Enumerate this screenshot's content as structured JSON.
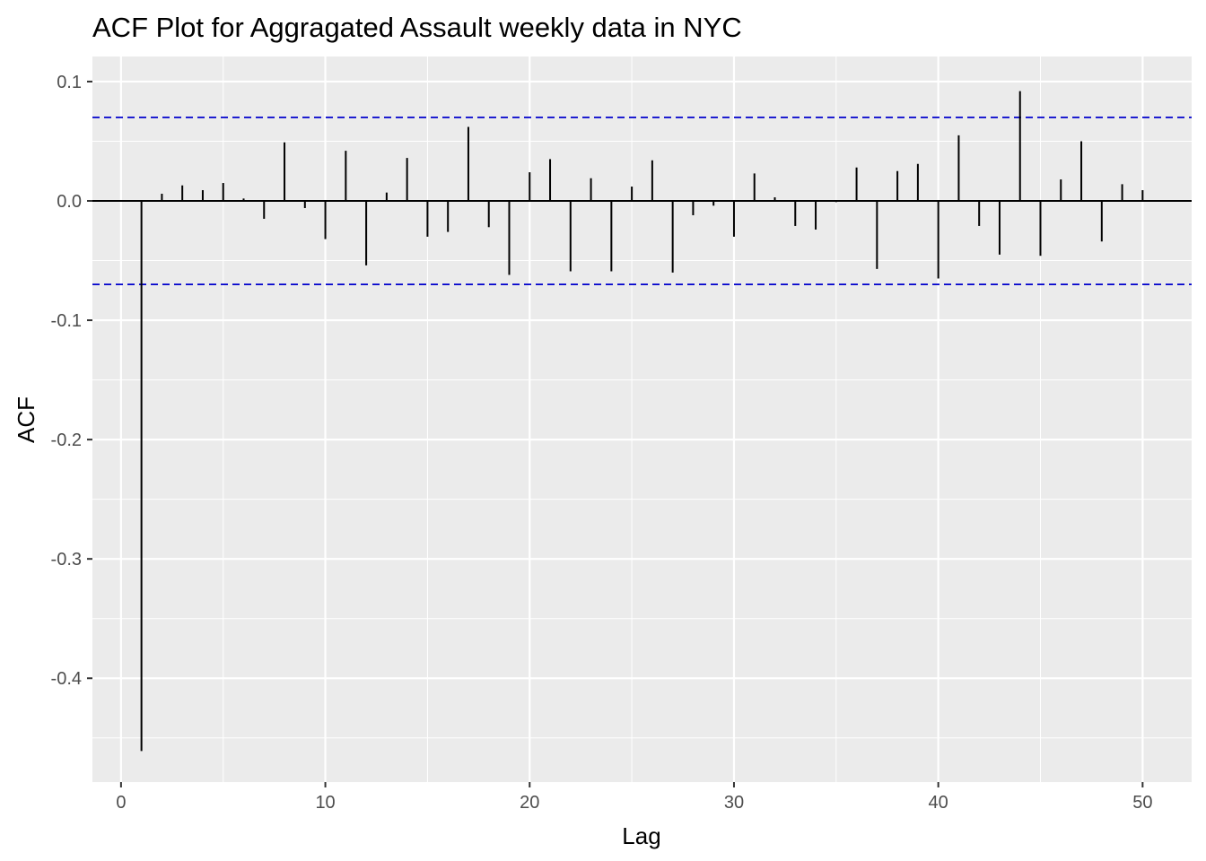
{
  "chart_data": {
    "type": "bar",
    "title": "ACF Plot for Aggragated Assault weekly data in NYC",
    "xlabel": "Lag",
    "ylabel": "ACF",
    "xlim": [
      -1.4,
      52.4
    ],
    "ylim": [
      -0.487,
      0.121
    ],
    "x_ticks": [
      0,
      10,
      20,
      30,
      40,
      50
    ],
    "x_tick_labels": [
      "0",
      "10",
      "20",
      "30",
      "40",
      "50"
    ],
    "y_ticks": [
      0.1,
      0.0,
      -0.1,
      -0.2,
      -0.3,
      -0.4
    ],
    "y_tick_labels": [
      "0.1",
      "0.0",
      "-0.1",
      "-0.2",
      "-0.3",
      "-0.4"
    ],
    "confidence_bound": 0.07,
    "grid": true,
    "colors": {
      "panel": "#ebebeb",
      "grid": "#ffffff",
      "bar": "#000000",
      "bound": "#0000cc",
      "zero_line": "#000000"
    },
    "lags": [
      1,
      2,
      3,
      4,
      5,
      6,
      7,
      8,
      9,
      10,
      11,
      12,
      13,
      14,
      15,
      16,
      17,
      18,
      19,
      20,
      21,
      22,
      23,
      24,
      25,
      26,
      27,
      28,
      29,
      30,
      31,
      32,
      33,
      34,
      35,
      36,
      37,
      38,
      39,
      40,
      41,
      42,
      43,
      44,
      45,
      46,
      47,
      48,
      49,
      50
    ],
    "values": [
      -0.461,
      0.006,
      0.013,
      0.009,
      0.015,
      0.002,
      -0.015,
      0.049,
      -0.006,
      -0.032,
      0.042,
      -0.054,
      0.007,
      0.036,
      -0.03,
      -0.026,
      0.062,
      -0.022,
      -0.062,
      0.024,
      0.035,
      -0.059,
      0.019,
      -0.059,
      0.012,
      0.034,
      -0.06,
      -0.012,
      -0.004,
      -0.03,
      0.023,
      0.003,
      -0.021,
      -0.024,
      -0.001,
      0.028,
      -0.057,
      0.025,
      0.031,
      -0.065,
      0.055,
      -0.021,
      -0.045,
      0.092,
      -0.046,
      0.018,
      0.05,
      -0.034,
      0.014,
      0.009
    ]
  }
}
